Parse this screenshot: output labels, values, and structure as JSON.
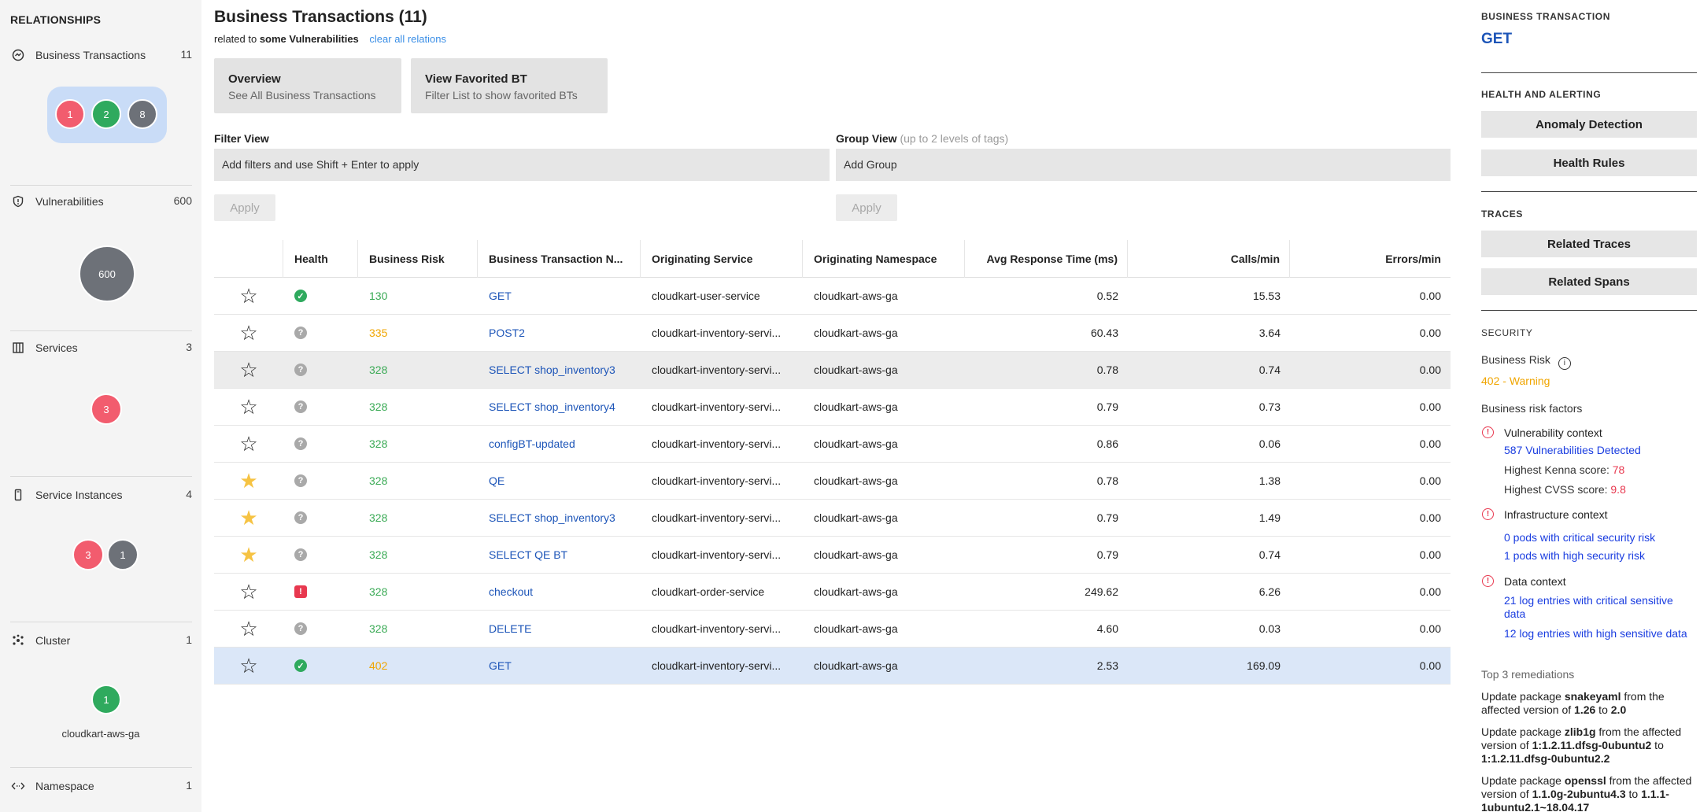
{
  "sidebar": {
    "title": "RELATIONSHIPS",
    "sections": [
      {
        "label": "Business Transactions",
        "count": "11",
        "bubbles": [
          "1",
          "2",
          "8"
        ]
      },
      {
        "label": "Vulnerabilities",
        "count": "600",
        "bubbles": [
          "600"
        ]
      },
      {
        "label": "Services",
        "count": "3",
        "bubbles": [
          "3"
        ]
      },
      {
        "label": "Service Instances",
        "count": "4",
        "bubbles": [
          "3",
          "1"
        ]
      },
      {
        "label": "Cluster",
        "count": "1",
        "bubbles": [
          "1"
        ],
        "footer": "cloudkart-aws-ga"
      },
      {
        "label": "Namespace",
        "count": "1"
      }
    ]
  },
  "main": {
    "title": "Business Transactions (11)",
    "subtitle_prefix": "related to",
    "subtitle_bold": "some Vulnerabilities",
    "clear_link": "clear all relations",
    "cards": [
      {
        "title": "Overview",
        "sub": "See All Business Transactions"
      },
      {
        "title": "View Favorited BT",
        "sub": "Filter List to show favorited BTs"
      }
    ],
    "filter": {
      "label": "Filter View",
      "placeholder": "Add filters and use Shift + Enter to apply",
      "apply": "Apply"
    },
    "group": {
      "label": "Group View",
      "hint": "(up to 2 levels of tags)",
      "placeholder": "Add Group",
      "apply": "Apply"
    },
    "table": {
      "headers": [
        "",
        "Health",
        "Business Risk",
        "Business Transaction N...",
        "Originating Service",
        "Originating Namespace",
        "Avg Response Time (ms)",
        "Calls/min",
        "Errors/min"
      ],
      "rows": [
        {
          "fav": false,
          "health": "ok",
          "risk": "130",
          "name": "GET",
          "service": "cloudkart-user-service",
          "namespace": "cloudkart-aws-ga",
          "avg": "0.52",
          "calls": "15.53",
          "errors": "0.00"
        },
        {
          "fav": false,
          "health": "unknown",
          "risk": "335",
          "name": "POST2",
          "service": "cloudkart-inventory-servi...",
          "namespace": "cloudkart-aws-ga",
          "avg": "60.43",
          "calls": "3.64",
          "errors": "0.00"
        },
        {
          "fav": false,
          "health": "unknown",
          "risk": "328",
          "name": "SELECT shop_inventory3",
          "service": "cloudkart-inventory-servi...",
          "namespace": "cloudkart-aws-ga",
          "avg": "0.78",
          "calls": "0.74",
          "errors": "0.00"
        },
        {
          "fav": false,
          "health": "unknown",
          "risk": "328",
          "name": "SELECT shop_inventory4",
          "service": "cloudkart-inventory-servi...",
          "namespace": "cloudkart-aws-ga",
          "avg": "0.79",
          "calls": "0.73",
          "errors": "0.00"
        },
        {
          "fav": false,
          "health": "unknown",
          "risk": "328",
          "name": "configBT-updated",
          "service": "cloudkart-inventory-servi...",
          "namespace": "cloudkart-aws-ga",
          "avg": "0.86",
          "calls": "0.06",
          "errors": "0.00"
        },
        {
          "fav": true,
          "health": "unknown",
          "risk": "328",
          "name": "QE",
          "service": "cloudkart-inventory-servi...",
          "namespace": "cloudkart-aws-ga",
          "avg": "0.78",
          "calls": "1.38",
          "errors": "0.00"
        },
        {
          "fav": true,
          "health": "unknown",
          "risk": "328",
          "name": "SELECT shop_inventory3",
          "service": "cloudkart-inventory-servi...",
          "namespace": "cloudkart-aws-ga",
          "avg": "0.79",
          "calls": "1.49",
          "errors": "0.00"
        },
        {
          "fav": true,
          "health": "unknown",
          "risk": "328",
          "name": "SELECT QE BT",
          "service": "cloudkart-inventory-servi...",
          "namespace": "cloudkart-aws-ga",
          "avg": "0.79",
          "calls": "0.74",
          "errors": "0.00"
        },
        {
          "fav": false,
          "health": "critical",
          "risk": "328",
          "name": "checkout",
          "service": "cloudkart-order-service",
          "namespace": "cloudkart-aws-ga",
          "avg": "249.62",
          "calls": "6.26",
          "errors": "0.00"
        },
        {
          "fav": false,
          "health": "unknown",
          "risk": "328",
          "name": "DELETE",
          "service": "cloudkart-inventory-servi...",
          "namespace": "cloudkart-aws-ga",
          "avg": "4.60",
          "calls": "0.03",
          "errors": "0.00"
        },
        {
          "fav": false,
          "health": "ok",
          "risk": "402",
          "name": "GET",
          "service": "cloudkart-inventory-servi...",
          "namespace": "cloudkart-aws-ga",
          "avg": "2.53",
          "calls": "169.09",
          "errors": "0.00"
        }
      ]
    }
  },
  "panel": {
    "bt_heading": "BUSINESS TRANSACTION",
    "bt_name": "GET",
    "health_heading": "HEALTH AND ALERTING",
    "anomaly_btn": "Anomaly Detection",
    "health_rules_btn": "Health Rules",
    "traces_heading": "TRACES",
    "related_traces_btn": "Related Traces",
    "related_spans_btn": "Related Spans",
    "security_heading": "SECURITY",
    "business_risk_label": "Business Risk",
    "risk_value": "402",
    "risk_sep": " - ",
    "risk_level": "Warning",
    "risk_factors_label": "Business risk factors",
    "vuln_context": "Vulnerability context",
    "vuln_detected": "587 Vulnerabilities Detected",
    "kenna_label": "Highest Kenna score:",
    "kenna_value": "78",
    "cvss_label": "Highest CVSS score:",
    "cvss_value": "9.8",
    "infra_context": "Infrastructure context",
    "pods_critical": "0 pods with critical security risk",
    "pods_high": "1 pods with high security risk",
    "data_context": "Data context",
    "log_critical": "21 log entries with critical sensitive data",
    "log_high": "12 log entries with high sensitive data",
    "remediations_label": "Top 3 remediations",
    "remediations": [
      {
        "pkg": "snakeyaml",
        "from": "1.26",
        "to": "2.0"
      },
      {
        "pkg": "zlib1g",
        "from": "1:1.2.11.dfsg-0ubuntu2",
        "to": "1:1.2.11.dfsg-0ubuntu2.2"
      },
      {
        "pkg": "openssl",
        "from": "1.1.0g-2ubuntu4.3",
        "to": "1.1.1-1ubuntu2.1~18.04.17"
      }
    ],
    "rem_text_a": "Update package",
    "rem_text_b": "from the affected version of",
    "rem_text_c": "to",
    "colors": {
      "risk_green": "#3aaa55",
      "risk_warn": "#f0a500",
      "link": "#1a3de0",
      "danger": "#e8384f"
    }
  }
}
